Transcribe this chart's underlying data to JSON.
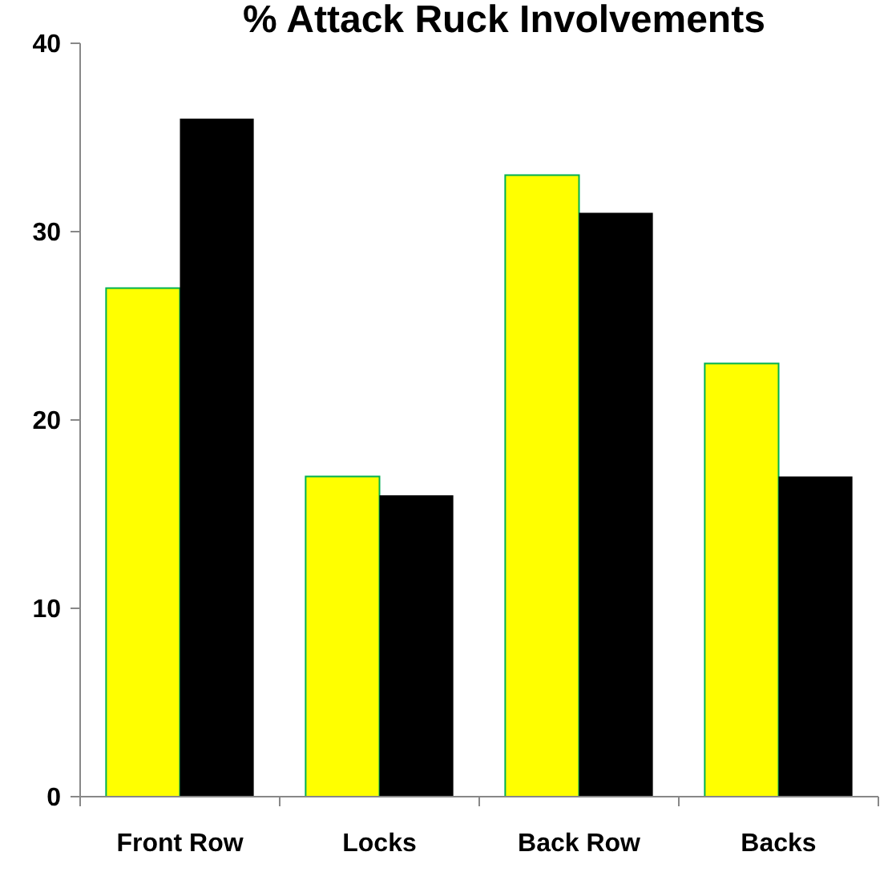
{
  "chart_data": {
    "type": "bar",
    "title": "% Attack Ruck Involvements",
    "categories": [
      "Front Row",
      "Locks",
      "Back Row",
      "Backs"
    ],
    "series": [
      {
        "color": "#ffff00",
        "values": [
          27,
          17,
          33,
          23
        ]
      },
      {
        "color": "#000000",
        "values": [
          36,
          16,
          31,
          17
        ]
      }
    ],
    "ylim": [
      0,
      40
    ],
    "yticks": [
      0,
      10,
      20,
      30,
      40
    ],
    "grid": false
  }
}
